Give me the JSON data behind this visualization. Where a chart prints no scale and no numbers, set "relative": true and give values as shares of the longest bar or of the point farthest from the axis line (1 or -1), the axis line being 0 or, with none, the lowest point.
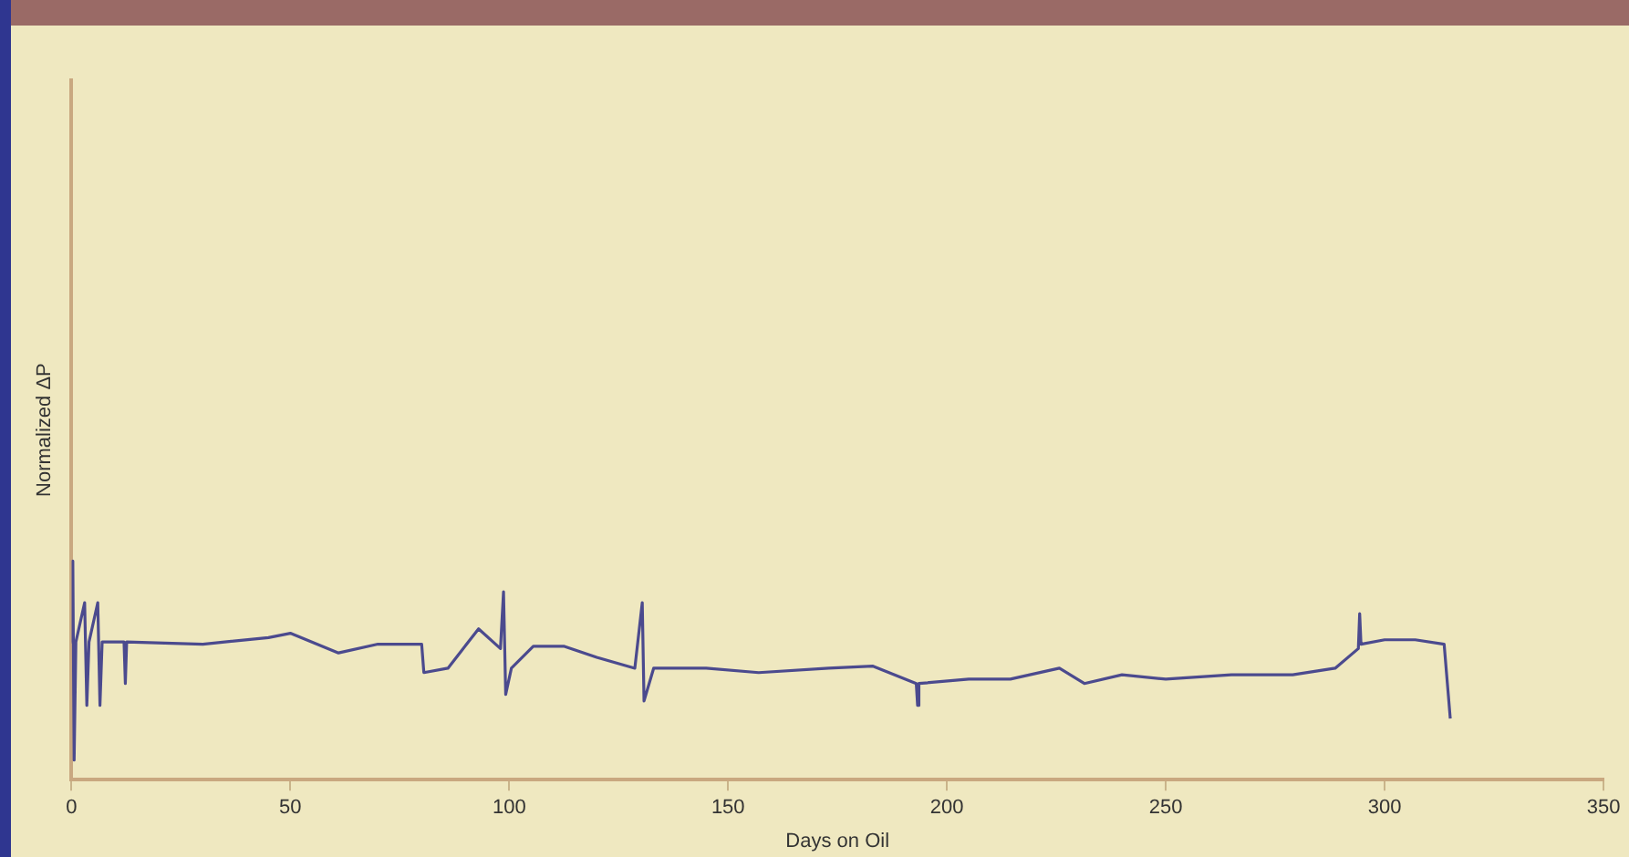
{
  "chart_data": {
    "type": "line",
    "xlabel": "Days on Oil",
    "ylabel": "Normalized ΔP",
    "relative": true,
    "xlim": [
      0,
      350
    ],
    "xticks": [
      0,
      50,
      100,
      150,
      200,
      250,
      300,
      350
    ],
    "legend": false,
    "marker": "none",
    "line_style": "solid",
    "series": [
      {
        "color": "#4b4a8e",
        "x": [
          0,
          0.3,
          0.6,
          1,
          3,
          3.5,
          4,
          6,
          6.5,
          7,
          12,
          12.3,
          12.6,
          30,
          45,
          50,
          61,
          70,
          80,
          80.5,
          86,
          93,
          98,
          98.7,
          99.2,
          100.5,
          105.5,
          112.6,
          120,
          128.7,
          130.4,
          130.8,
          133,
          145,
          157,
          173,
          183,
          193,
          193.3,
          193.6,
          205,
          214.5,
          225.7,
          231.4,
          240,
          250,
          265,
          279,
          288.7,
          294,
          294.3,
          294.6,
          300,
          307,
          313.6,
          315
        ],
        "values": [
          0.63,
          1,
          0.09,
          0.63,
          0.81,
          0.34,
          0.63,
          0.81,
          0.34,
          0.63,
          0.63,
          0.44,
          0.63,
          0.62,
          0.65,
          0.67,
          0.58,
          0.62,
          0.62,
          0.49,
          0.51,
          0.69,
          0.6,
          0.86,
          0.39,
          0.51,
          0.61,
          0.61,
          0.56,
          0.51,
          0.81,
          0.36,
          0.51,
          0.51,
          0.49,
          0.51,
          0.52,
          0.44,
          0.34,
          0.44,
          0.46,
          0.46,
          0.51,
          0.44,
          0.48,
          0.46,
          0.48,
          0.48,
          0.51,
          0.6,
          0.76,
          0.62,
          0.64,
          0.64,
          0.62,
          0.28
        ]
      }
    ]
  }
}
